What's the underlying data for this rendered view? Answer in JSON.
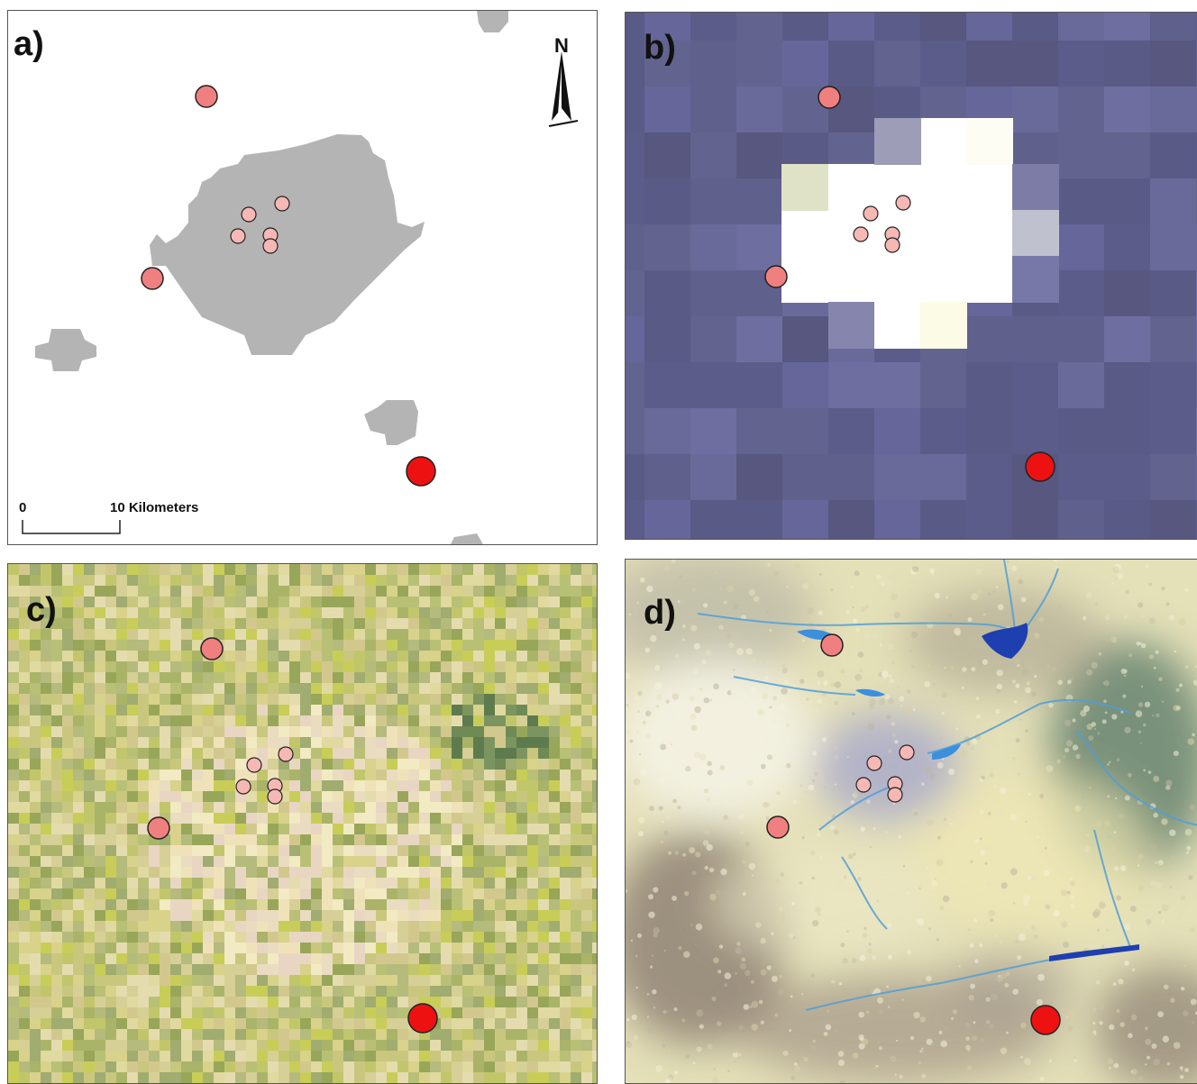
{
  "panels": {
    "a": {
      "label": "a)"
    },
    "b": {
      "label": "b)"
    },
    "c": {
      "label": "c)"
    },
    "d": {
      "label": "d)"
    }
  },
  "north_arrow": {
    "label": "N"
  },
  "scale_bar": {
    "zero": "0",
    "end": "10 Kilometers"
  },
  "colors": {
    "large_site": "#ee1111",
    "medium_site": "#f08080",
    "small_site": "#f6b8b4",
    "urban_grey": "#b4b4b4",
    "panel_b_base": "#5f5f8c",
    "water": "#1e3fb0"
  }
}
